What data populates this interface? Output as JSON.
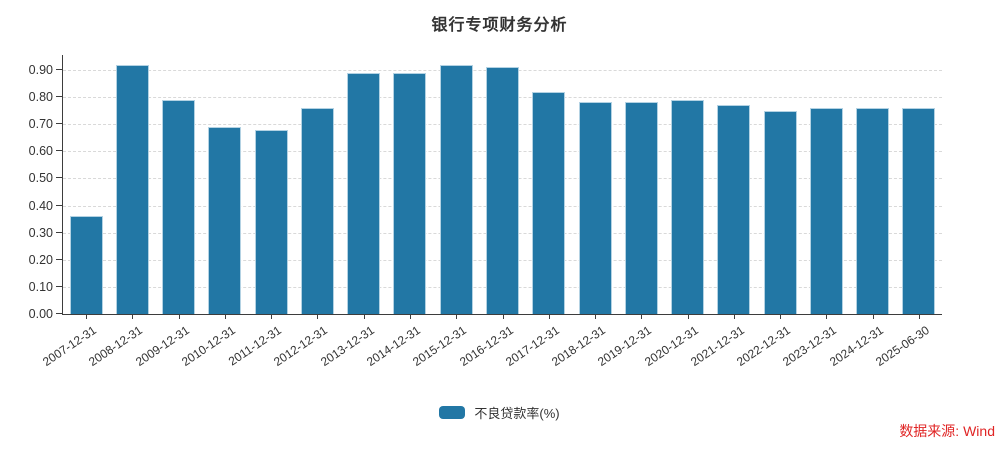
{
  "title": "银行专项财务分析",
  "source_note": "数据来源: Wind",
  "legend": {
    "items": [
      {
        "label": "不良贷款率(%)",
        "color": "#2277a5"
      }
    ]
  },
  "colors": {
    "bar": "#2277a5",
    "bar_edge": "#b3d2e3",
    "grid": "#d9d9d9",
    "axis": "#3d3d3d",
    "text": "#333333",
    "source": "#e02424"
  },
  "chart_data": {
    "type": "bar",
    "title": "银行专项财务分析",
    "categories": [
      "2007-12-31",
      "2008-12-31",
      "2009-12-31",
      "2010-12-31",
      "2011-12-31",
      "2012-12-31",
      "2013-12-31",
      "2014-12-31",
      "2015-12-31",
      "2016-12-31",
      "2017-12-31",
      "2018-12-31",
      "2019-12-31",
      "2020-12-31",
      "2021-12-31",
      "2022-12-31",
      "2023-12-31",
      "2024-12-31",
      "2025-06-30"
    ],
    "series": [
      {
        "name": "不良贷款率(%)",
        "values": [
          0.36,
          0.92,
          0.79,
          0.69,
          0.68,
          0.76,
          0.89,
          0.89,
          0.92,
          0.91,
          0.82,
          0.78,
          0.78,
          0.79,
          0.77,
          0.75,
          0.76,
          0.76,
          0.76
        ]
      }
    ],
    "xlabel": "",
    "ylabel": "",
    "ylim": [
      0,
      0.955
    ],
    "yticks": [
      0.0,
      0.1,
      0.2,
      0.3,
      0.4,
      0.5,
      0.6,
      0.7,
      0.8,
      0.9
    ],
    "ytick_decimals": 2,
    "grid": "horizontal-dashed",
    "legend_position": "bottom-center",
    "bar_color": "#2277a5"
  }
}
